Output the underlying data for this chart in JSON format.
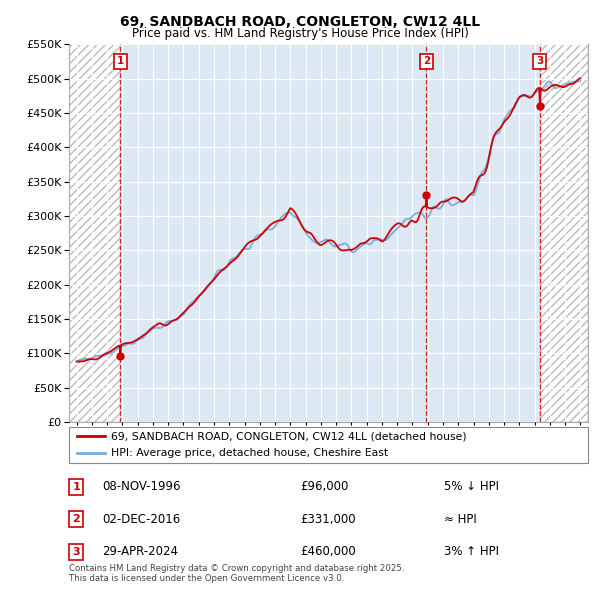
{
  "title": "69, SANDBACH ROAD, CONGLETON, CW12 4LL",
  "subtitle": "Price paid vs. HM Land Registry's House Price Index (HPI)",
  "legend_line1": "69, SANDBACH ROAD, CONGLETON, CW12 4LL (detached house)",
  "legend_line2": "HPI: Average price, detached house, Cheshire East",
  "footer": "Contains HM Land Registry data © Crown copyright and database right 2025.\nThis data is licensed under the Open Government Licence v3.0.",
  "sales": [
    {
      "num": 1,
      "date": "08-NOV-1996",
      "price": 96000,
      "year": 1996.86,
      "pct": "5% ↓ HPI"
    },
    {
      "num": 2,
      "date": "02-DEC-2016",
      "price": 331000,
      "year": 2016.92,
      "pct": "≈ HPI"
    },
    {
      "num": 3,
      "date": "29-APR-2024",
      "price": 460000,
      "year": 2024.33,
      "pct": "3% ↑ HPI"
    }
  ],
  "ylim": [
    0,
    550000
  ],
  "yticks": [
    0,
    50000,
    100000,
    150000,
    200000,
    250000,
    300000,
    350000,
    400000,
    450000,
    500000,
    550000
  ],
  "xlim_start": 1993.5,
  "xlim_end": 2027.5,
  "plot_bg_color": "#dce9f5",
  "hatch_bg_color": "#f0f0f0",
  "grid_color": "#ffffff",
  "red_color": "#cc0000",
  "blue_color": "#7aaddb",
  "dashed_line_color": "#cc0000",
  "marker_dot_color": "#cc0000"
}
